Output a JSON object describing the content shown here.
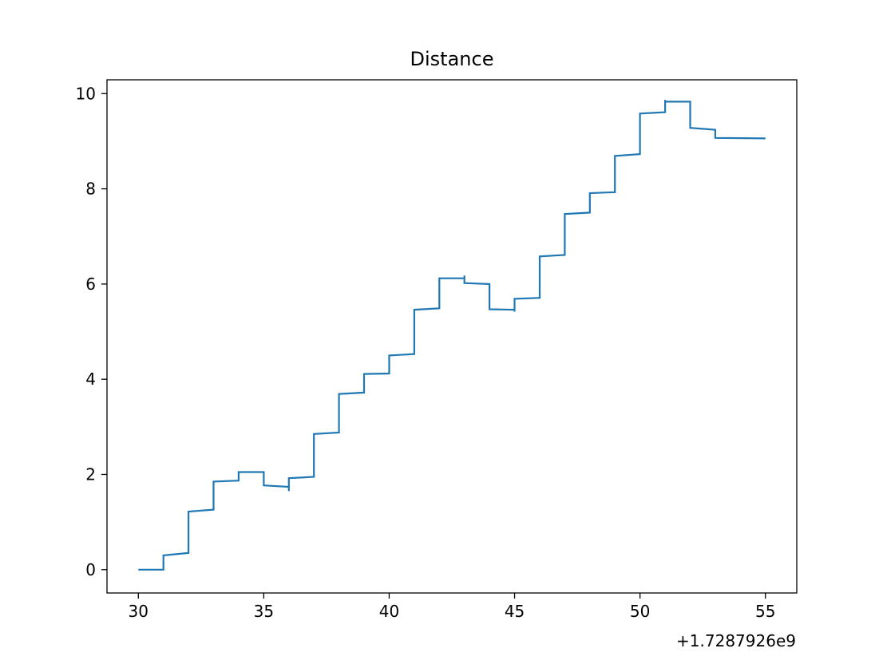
{
  "chart_data": {
    "type": "line",
    "title": "Distance",
    "xlabel": "",
    "ylabel": "",
    "x_offset_label": "+1.7287926e9",
    "xlim": [
      28.75,
      56.25
    ],
    "ylim": [
      -0.49,
      10.29
    ],
    "xticks": [
      30,
      35,
      40,
      45,
      50,
      55
    ],
    "yticks": [
      0,
      2,
      4,
      6,
      8,
      10
    ],
    "grid": false,
    "line_color": "#1f77b4",
    "series": [
      {
        "x": [
          30.0,
          31.0,
          31.0,
          32.0,
          32.0,
          33.0,
          33.0,
          34.0,
          34.0,
          35.0,
          35.0,
          36.0,
          36.0,
          36.0,
          36.0,
          37.0,
          37.0,
          38.0,
          38.0,
          39.0,
          39.0,
          40.0,
          40.0,
          41.0,
          41.0,
          42.0,
          42.0,
          43.0,
          43.0,
          43.0,
          43.0,
          44.0,
          44.0,
          45.0,
          45.0,
          45.0,
          45.0,
          46.0,
          46.0,
          47.0,
          47.0,
          48.0,
          48.0,
          49.0,
          49.0,
          50.0,
          50.0,
          51.0,
          51.0,
          51.0,
          51.0,
          52.0,
          52.0,
          53.0,
          53.0,
          55.0
        ],
        "y": [
          0.0,
          0.0,
          0.3,
          0.35,
          1.22,
          1.26,
          1.85,
          1.87,
          2.05,
          2.05,
          1.77,
          1.74,
          1.65,
          1.92,
          1.92,
          1.95,
          2.85,
          2.88,
          3.69,
          3.72,
          4.11,
          4.12,
          4.5,
          4.53,
          5.46,
          5.49,
          6.12,
          6.12,
          6.18,
          6.02,
          6.02,
          6.0,
          5.47,
          5.46,
          5.42,
          5.69,
          5.69,
          5.71,
          6.58,
          6.61,
          7.47,
          7.5,
          7.91,
          7.93,
          8.69,
          8.73,
          9.58,
          9.61,
          9.87,
          9.83,
          9.83,
          9.83,
          9.28,
          9.24,
          9.07,
          9.06
        ]
      }
    ]
  }
}
